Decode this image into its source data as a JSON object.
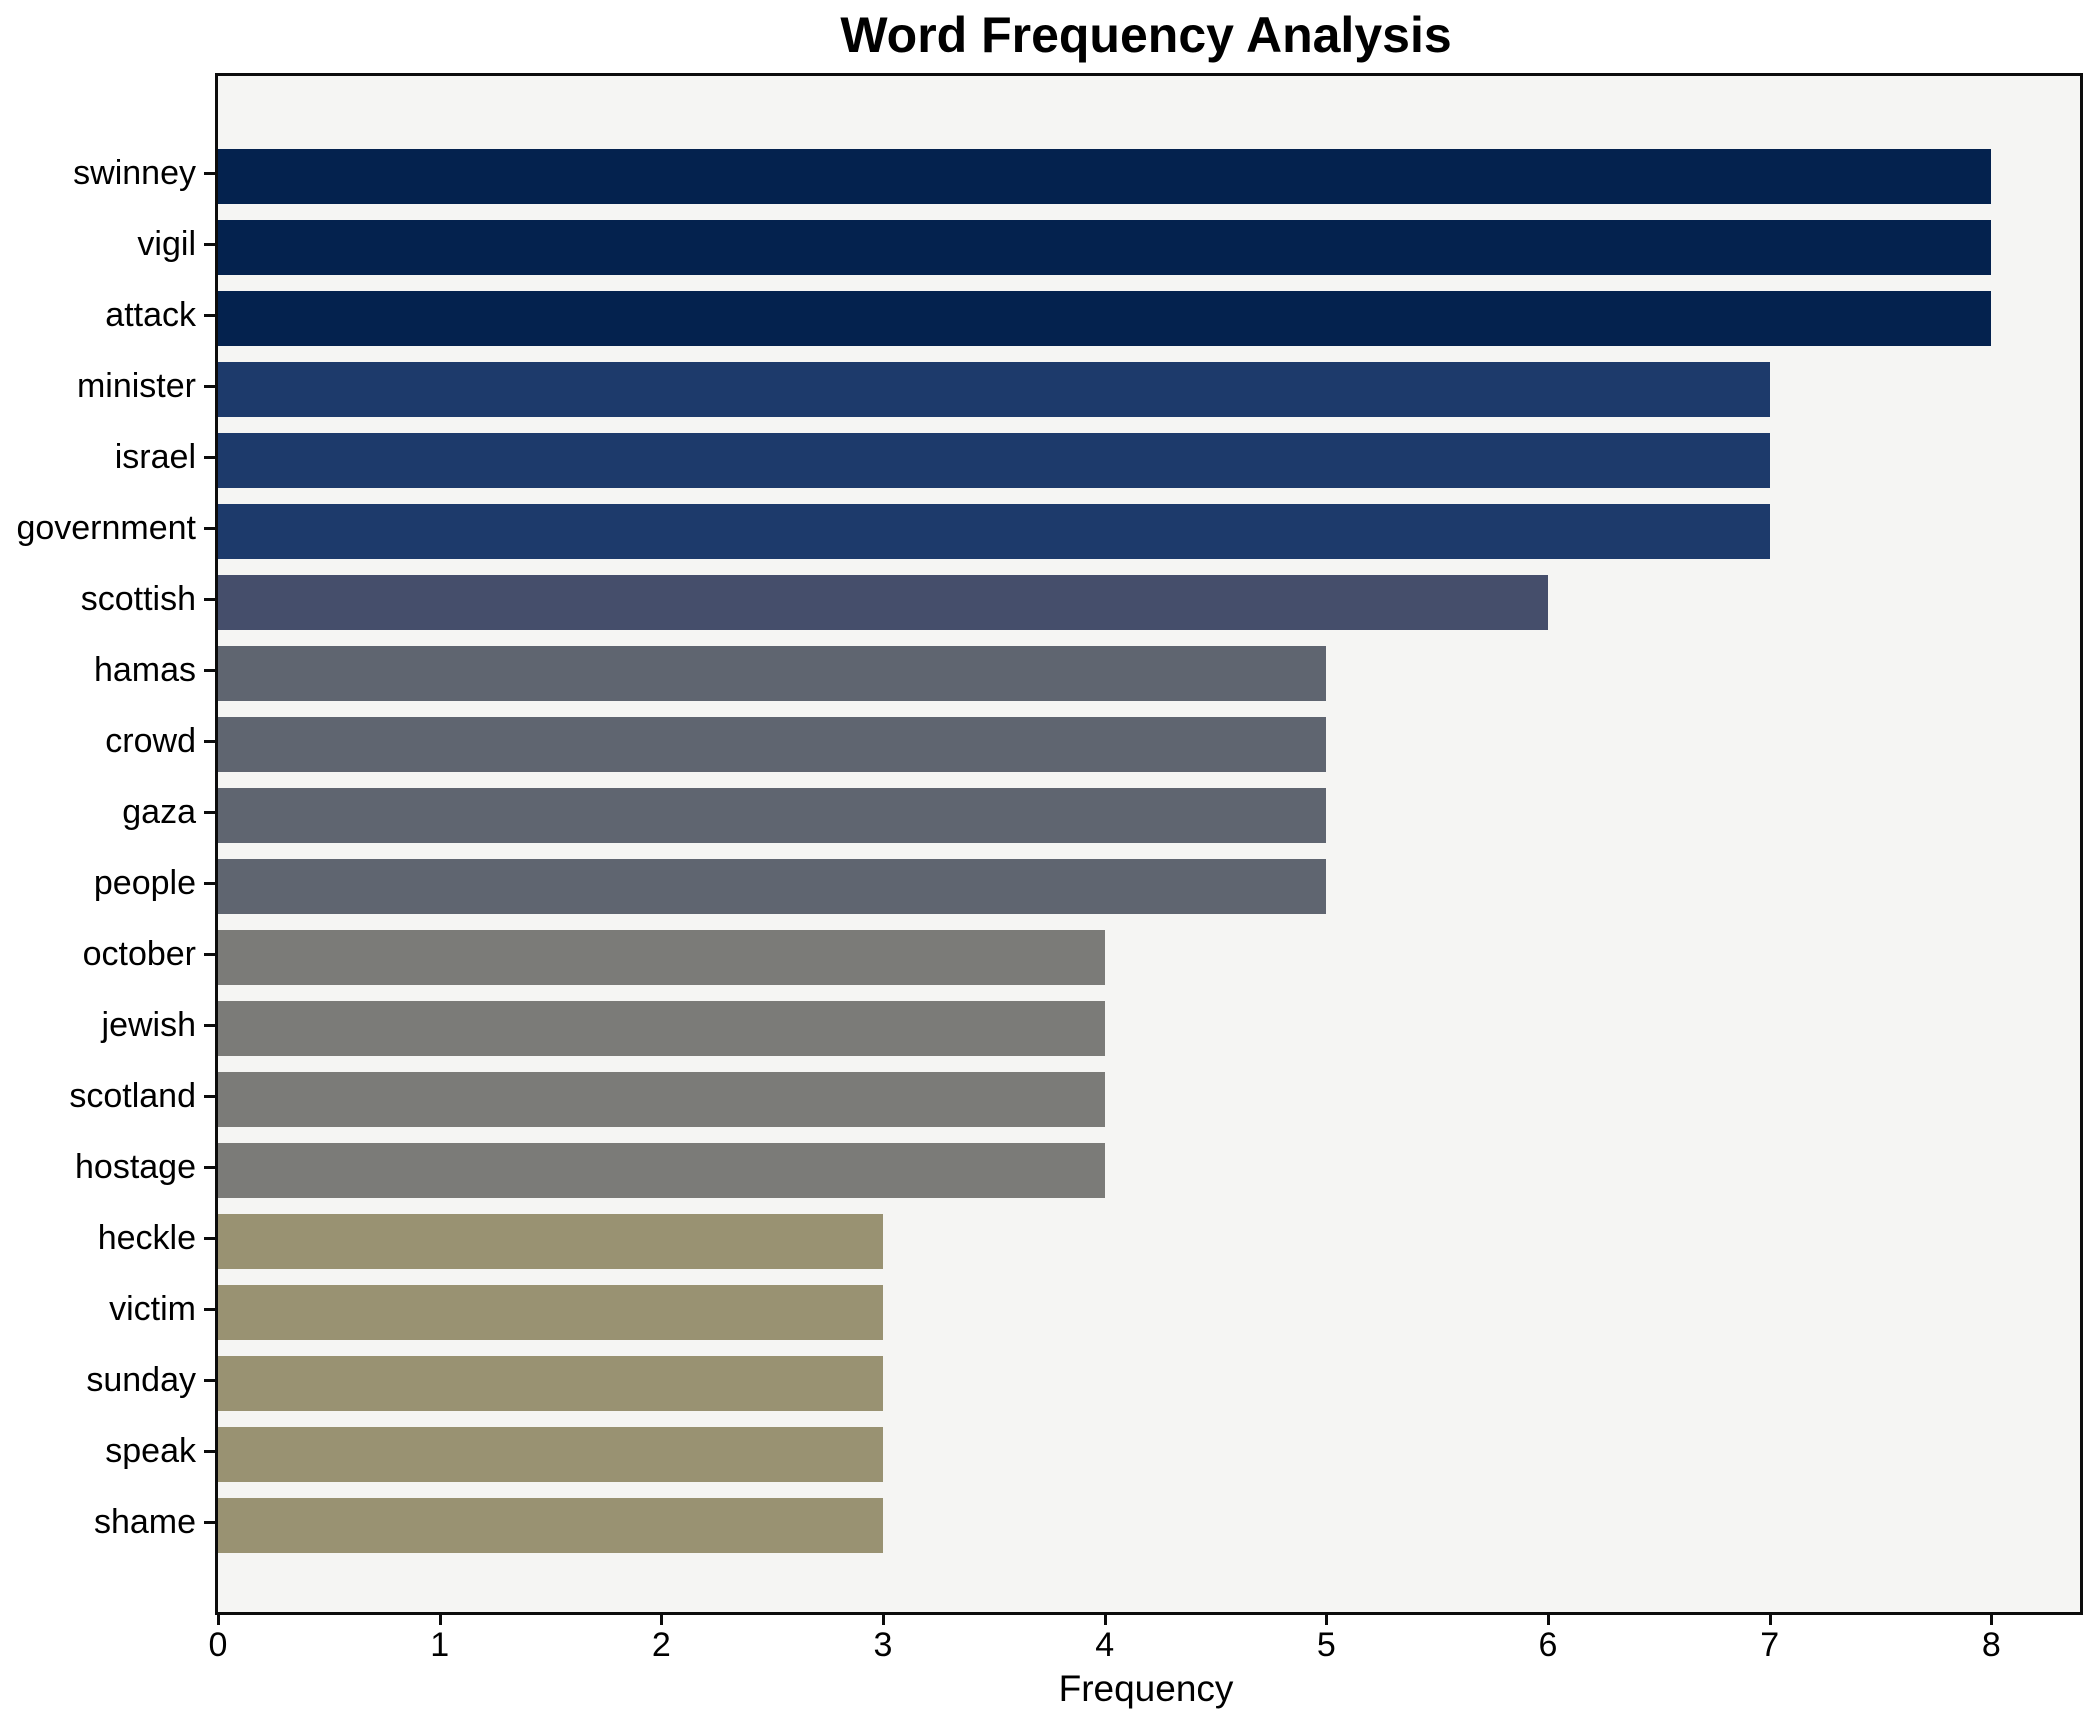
{
  "chart_data": {
    "type": "bar",
    "orientation": "horizontal",
    "title": "Word Frequency Analysis",
    "xlabel": "Frequency",
    "ylabel": "",
    "categories": [
      "swinney",
      "vigil",
      "attack",
      "minister",
      "israel",
      "government",
      "scottish",
      "hamas",
      "crowd",
      "gaza",
      "people",
      "october",
      "jewish",
      "scotland",
      "hostage",
      "heckle",
      "victim",
      "sunday",
      "speak",
      "shame"
    ],
    "values": [
      8,
      8,
      8,
      7,
      7,
      7,
      6,
      5,
      5,
      5,
      5,
      4,
      4,
      4,
      4,
      3,
      3,
      3,
      3,
      3
    ],
    "bar_colors": [
      "#04224e",
      "#04224e",
      "#04224e",
      "#1d3a6b",
      "#1d3a6b",
      "#1d3a6b",
      "#454e6b",
      "#5f6570",
      "#5f6570",
      "#5f6570",
      "#5f6570",
      "#7b7b78",
      "#7b7b78",
      "#7b7b78",
      "#7b7b78",
      "#999272",
      "#999272",
      "#999272",
      "#999272",
      "#999272"
    ],
    "xticks": [
      "0",
      "1",
      "2",
      "3",
      "4",
      "5",
      "6",
      "7",
      "8"
    ],
    "xlim": [
      0,
      8.4
    ],
    "grid": false,
    "legend_position": "none",
    "plot_background": "#f5f5f3",
    "figure_background": "#ffffff",
    "axis_color": "#0c0c0c",
    "text_color": "#000000"
  }
}
